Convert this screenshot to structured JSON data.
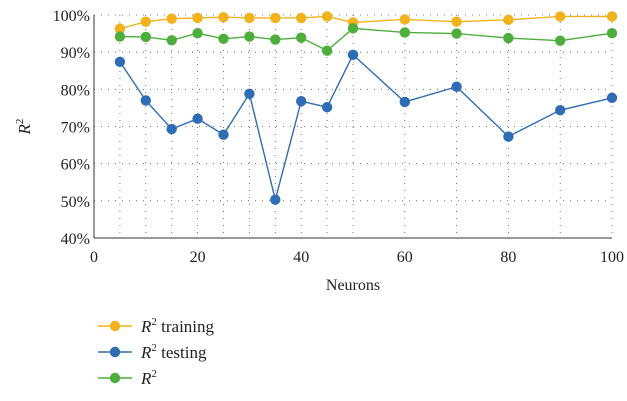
{
  "chart_data": {
    "type": "line",
    "title": "",
    "xlabel": "Neurons",
    "ylabel_base": "R",
    "ylabel_sup": "2",
    "xlim": [
      0,
      100
    ],
    "ylim": [
      40,
      100
    ],
    "x_ticks": [
      0,
      20,
      40,
      60,
      80,
      100
    ],
    "y_ticks": [
      40,
      50,
      60,
      70,
      80,
      90,
      100
    ],
    "y_tick_suffix": "%",
    "grid": "dotted",
    "legend_position": "bottom-left",
    "x": [
      5,
      10,
      15,
      20,
      25,
      30,
      35,
      40,
      45,
      50,
      60,
      70,
      80,
      90,
      100
    ],
    "series": [
      {
        "name_base": "R",
        "name_sup": "2",
        "name_suffix": " training",
        "color": "#F2B21B",
        "values": [
          96.3,
          98.2,
          99.0,
          99.2,
          99.4,
          99.2,
          99.2,
          99.2,
          99.6,
          98.0,
          98.8,
          98.2,
          98.7,
          99.6,
          99.6
        ]
      },
      {
        "name_base": "R",
        "name_sup": "2",
        "name_suffix": " testing",
        "color": "#2E6DB4",
        "values": [
          87.4,
          77.0,
          69.3,
          72.1,
          67.8,
          78.8,
          50.3,
          76.8,
          75.2,
          89.3,
          76.6,
          80.7,
          67.3,
          74.4,
          77.7
        ]
      },
      {
        "name_base": "R",
        "name_sup": "2",
        "name_suffix": "",
        "color": "#4DAE3C",
        "values": [
          94.2,
          94.1,
          93.2,
          95.1,
          93.6,
          94.2,
          93.4,
          93.9,
          90.4,
          96.4,
          95.3,
          95.0,
          93.8,
          93.1,
          95.1
        ]
      }
    ]
  }
}
